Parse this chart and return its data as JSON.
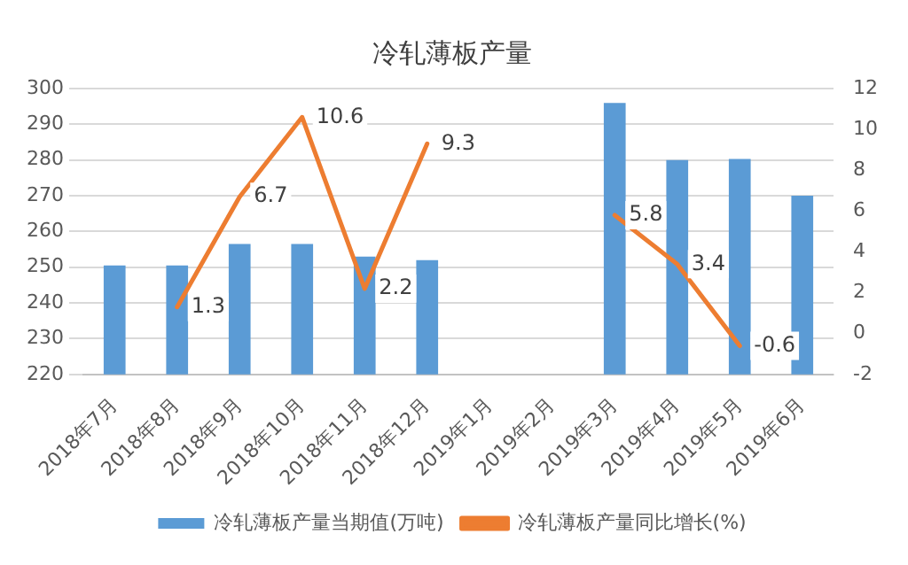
{
  "chart_data": {
    "type": "bar",
    "title": "冷轧薄板产量",
    "categories": [
      "2018年7月",
      "2018年8月",
      "2018年9月",
      "2018年10月",
      "2018年11月",
      "2018年12月",
      "2019年1月",
      "2019年2月",
      "2019年3月",
      "2019年4月",
      "2019年5月",
      "2019年6月"
    ],
    "series": [
      {
        "name": "冷轧薄板产量当期值(万吨)",
        "color": "#5b9bd5",
        "values": [
          250.5,
          250.5,
          256.5,
          256.5,
          253,
          252,
          null,
          null,
          296,
          280,
          280.3,
          270
        ]
      },
      {
        "name": "冷轧薄板产量同比增长(%)",
        "type": "line",
        "axis": "y2",
        "color": "#ed7d31",
        "values": [
          null,
          1.3,
          6.7,
          10.6,
          2.2,
          9.3,
          null,
          null,
          5.8,
          3.4,
          -0.6,
          null
        ],
        "value_labels": [
          null,
          "1.3",
          "6.7",
          "10.6",
          "2.2",
          "9.3",
          null,
          null,
          "5.8",
          "3.4",
          "-0.6",
          null
        ]
      }
    ],
    "ylim": [
      220,
      300
    ],
    "yticks": [
      220,
      230,
      240,
      250,
      260,
      270,
      280,
      290,
      300
    ],
    "y2lim": [
      -2,
      12
    ],
    "y2ticks": [
      -2,
      0,
      2,
      4,
      6,
      8,
      10,
      12
    ],
    "grid": "y",
    "legend": "bottom",
    "marker": "none"
  }
}
